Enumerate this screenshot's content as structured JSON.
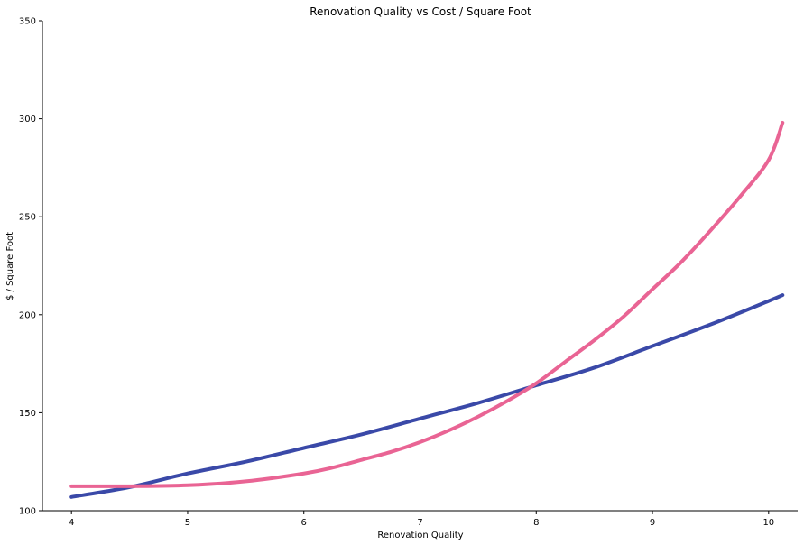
{
  "chart_data": {
    "type": "line",
    "title": "Renovation Quality vs Cost / Square Foot",
    "xlabel": "Renovation Quality",
    "ylabel": "$ / Square Foot",
    "xlim": [
      3.75,
      10.25
    ],
    "ylim": [
      100,
      350
    ],
    "xticks": [
      4,
      5,
      6,
      7,
      8,
      9,
      10
    ],
    "yticks": [
      100,
      150,
      200,
      250,
      300,
      350
    ],
    "x_tick_labels": [
      "4",
      "5",
      "6",
      "7",
      "8",
      "9",
      "10"
    ],
    "y_tick_labels": [
      "100",
      "150",
      "200",
      "250",
      "300",
      "350"
    ],
    "grid": false,
    "series": [
      {
        "color": "#3a49a8",
        "x": [
          4.0,
          4.5,
          5.0,
          5.5,
          6.0,
          6.5,
          7.0,
          7.5,
          8.0,
          8.5,
          9.0,
          9.5,
          10.0,
          10.12
        ],
        "y": [
          107,
          112,
          119,
          125,
          132,
          139,
          147,
          155,
          164,
          173,
          184,
          195,
          207,
          210
        ]
      },
      {
        "color": "#e96494",
        "x": [
          4.0,
          4.5,
          5.0,
          5.5,
          6.0,
          6.25,
          6.5,
          6.75,
          7.0,
          7.25,
          7.5,
          7.75,
          8.0,
          8.25,
          8.5,
          8.75,
          9.0,
          9.25,
          9.5,
          9.75,
          10.0,
          10.12
        ],
        "y": [
          112.5,
          112.5,
          113,
          115,
          119,
          122,
          126,
          130,
          135,
          141,
          148,
          156,
          165,
          176,
          187,
          199,
          213,
          227,
          243,
          260,
          279,
          298
        ]
      }
    ]
  }
}
